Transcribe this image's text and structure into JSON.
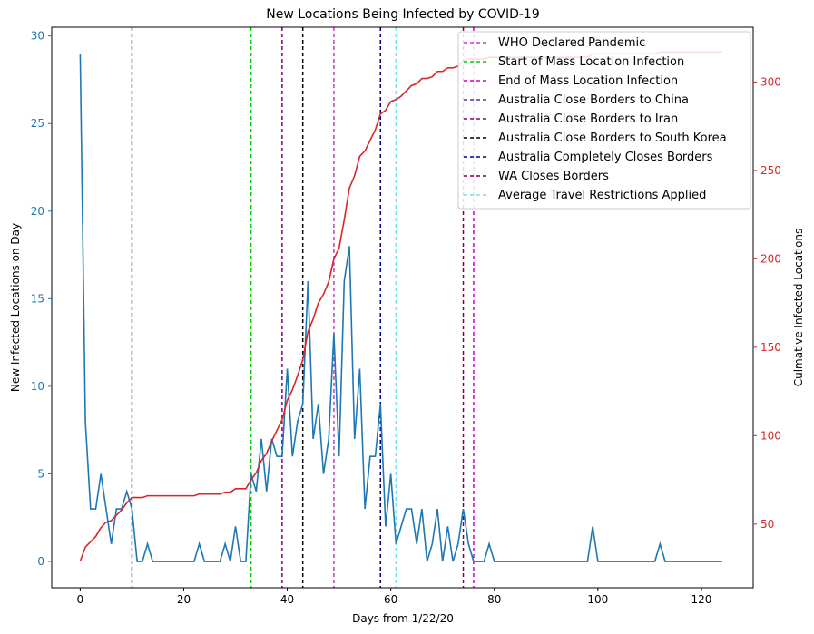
{
  "chart_data": {
    "type": "line",
    "title": "New Locations Being Infected by COVID-19",
    "xlabel": "Days from 1/22/20",
    "ylabel_left": "New Infected Locations on Day",
    "ylabel_right": "Culmative Infected Locations",
    "xlim": [
      -5.5,
      130
    ],
    "ylim_left": [
      -1.5,
      30.5
    ],
    "ylim_right": [
      14,
      331
    ],
    "x_ticks": [
      0,
      20,
      40,
      60,
      80,
      100,
      120
    ],
    "y_left_ticks": [
      0,
      5,
      10,
      15,
      20,
      25,
      30
    ],
    "y_right_ticks": [
      50,
      100,
      150,
      200,
      250,
      300
    ],
    "grid": false,
    "legend_position": "top-right",
    "colors": {
      "left_axis": "#1f77b4",
      "right_axis": "#d62728"
    },
    "series": [
      {
        "axis": "left",
        "color": "#1f77b4",
        "values": [
          29,
          8,
          3,
          3,
          5,
          3,
          1,
          3,
          3,
          4,
          3,
          0,
          0,
          1,
          0,
          0,
          0,
          0,
          0,
          0,
          0,
          0,
          0,
          1,
          0,
          0,
          0,
          0,
          1,
          0,
          2,
          0,
          0,
          5,
          4,
          7,
          4,
          7,
          6,
          6,
          11,
          6,
          8,
          9,
          16,
          7,
          9,
          5,
          7,
          13,
          6,
          16,
          18,
          7,
          11,
          3,
          6,
          6,
          9,
          2,
          5,
          1,
          2,
          3,
          3,
          1,
          3,
          0,
          1,
          3,
          0,
          2,
          0,
          1,
          3,
          1,
          0,
          0,
          0,
          1,
          0,
          0,
          0,
          0,
          0,
          0,
          0,
          0,
          0,
          0,
          0,
          0,
          0,
          0,
          0,
          0,
          0,
          0,
          0,
          2,
          0,
          0,
          0,
          0,
          0,
          0,
          0,
          0,
          0,
          0,
          0,
          0,
          1,
          0,
          0,
          0,
          0,
          0,
          0,
          0,
          0,
          0,
          0,
          0,
          0
        ]
      },
      {
        "axis": "right",
        "color": "#d62728",
        "values": [
          29,
          37,
          40,
          43,
          48,
          51,
          52,
          55,
          58,
          62,
          65,
          65,
          65,
          66,
          66,
          66,
          66,
          66,
          66,
          66,
          66,
          66,
          66,
          67,
          67,
          67,
          67,
          67,
          68,
          68,
          70,
          70,
          70,
          75,
          79,
          86,
          90,
          97,
          103,
          109,
          120,
          126,
          134,
          143,
          159,
          166,
          175,
          180,
          187,
          200,
          206,
          222,
          240,
          247,
          258,
          261,
          267,
          273,
          282,
          284,
          289,
          290,
          292,
          295,
          298,
          299,
          302,
          302,
          303,
          306,
          306,
          308,
          308,
          309,
          312,
          313,
          313,
          313,
          313,
          314,
          314,
          314,
          314,
          314,
          314,
          314,
          314,
          314,
          314,
          314,
          314,
          314,
          314,
          314,
          314,
          314,
          314,
          314,
          314,
          316,
          316,
          316,
          316,
          316,
          316,
          316,
          316,
          316,
          316,
          316,
          316,
          316,
          317,
          317,
          317,
          317,
          317,
          317,
          317,
          317,
          317,
          317,
          317,
          317,
          317
        ]
      }
    ],
    "events": [
      {
        "name": "WHO Declared Pandemic",
        "x": 49,
        "color": "#bf40bf"
      },
      {
        "name": "Start of Mass Location Infection",
        "x": 33,
        "color": "#00cc00"
      },
      {
        "name": "End of Mass Location Infection",
        "x": 76,
        "color": "#cc00cc"
      },
      {
        "name": "Australia Close Borders to China",
        "x": 10,
        "color": "#483d8b"
      },
      {
        "name": "Australia Close Borders to Iran",
        "x": 39,
        "color": "#800080"
      },
      {
        "name": "Australia Close Borders to South Korea",
        "x": 43,
        "color": "#000000"
      },
      {
        "name": "Australia Completely Closes Borders",
        "x": 58,
        "color": "#000080"
      },
      {
        "name": "WA Closes Borders",
        "x": 74,
        "color": "#800040"
      },
      {
        "name": "Average Travel Restrictions Applied",
        "x": 61,
        "color": "#6fe3e3"
      }
    ]
  }
}
